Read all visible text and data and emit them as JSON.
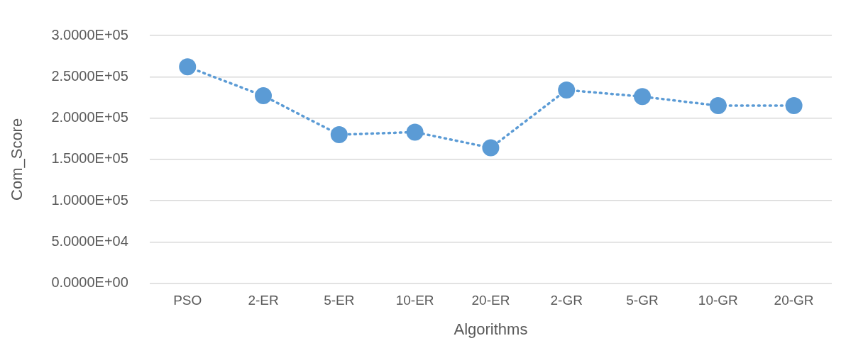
{
  "chart_data": {
    "type": "line",
    "xlabel": "Algorithms",
    "ylabel": "Com_Score",
    "categories": [
      "PSO",
      "2-ER",
      "5-ER",
      "10-ER",
      "20-ER",
      "2-GR",
      "5-GR",
      "10-GR",
      "20-GR"
    ],
    "series": [
      {
        "color": "#5b9bd5",
        "values": [
          262000,
          227000,
          180000,
          183000,
          164000,
          234000,
          226000,
          215000,
          215000
        ]
      }
    ],
    "ylim": [
      0,
      300000
    ],
    "yticks": [
      {
        "value": 0,
        "label": "0.0000E+00"
      },
      {
        "value": 50000,
        "label": "5.0000E+04"
      },
      {
        "value": 100000,
        "label": "1.0000E+05"
      },
      {
        "value": 150000,
        "label": "1.5000E+05"
      },
      {
        "value": 200000,
        "label": "2.0000E+05"
      },
      {
        "value": 250000,
        "label": "2.5000E+05"
      },
      {
        "value": 300000,
        "label": "3.0000E+05"
      }
    ],
    "grid": "y",
    "legend": false,
    "marker": "circle",
    "line_style": "dotted"
  }
}
